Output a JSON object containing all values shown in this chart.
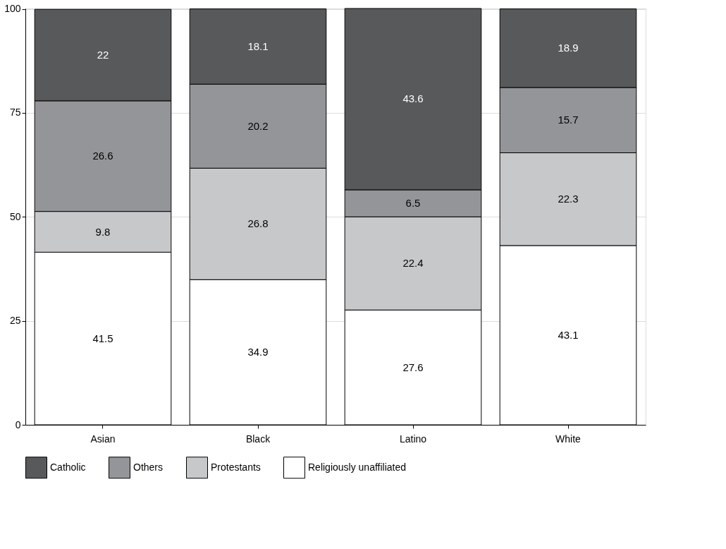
{
  "chart_data": {
    "type": "bar",
    "stacked": true,
    "categories": [
      "Asian",
      "Black",
      "Latino",
      "White"
    ],
    "series": [
      {
        "name": "Religiously unaffiliated",
        "color": "#ffffff",
        "values": [
          41.5,
          34.9,
          27.6,
          43.1
        ]
      },
      {
        "name": "Protestants",
        "color": "#c7c8ca",
        "values": [
          9.8,
          26.8,
          22.4,
          22.3
        ]
      },
      {
        "name": "Others",
        "color": "#939598",
        "values": [
          26.6,
          20.2,
          6.5,
          15.7
        ]
      },
      {
        "name": "Catholic",
        "color": "#58595b",
        "values": [
          22,
          18.1,
          43.6,
          18.9
        ]
      }
    ],
    "ylim": [
      0,
      100.1
    ],
    "yticks": [
      0,
      25,
      50,
      75,
      100
    ],
    "grid": "y",
    "legend": "bottom",
    "data_labels": true
  }
}
